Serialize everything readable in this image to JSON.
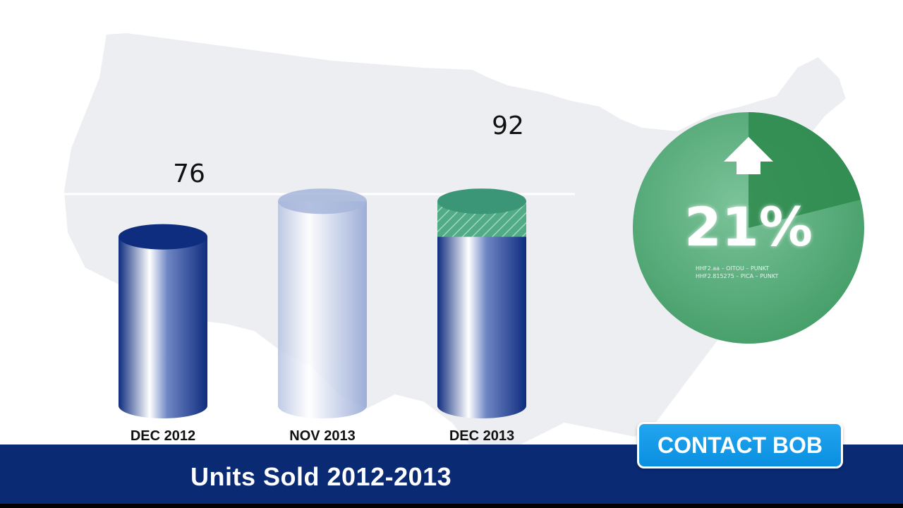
{
  "chart_data": {
    "type": "bar",
    "title": "Units Sold 2012-2013",
    "categories": [
      "DEC 2012",
      "NOV 2013",
      "DEC 2013"
    ],
    "values": [
      76,
      92,
      92
    ],
    "data_labels": [
      "76",
      "",
      "92"
    ],
    "ylim": [
      0,
      100
    ],
    "grid": false,
    "colors": {
      "bar": "#0f2d7f",
      "ghost_bar": "#b5c2e0",
      "increase": "#3fa37a"
    }
  },
  "badge": {
    "percent": "21%",
    "direction_icon": "up-arrow-icon",
    "fine_print": [
      "HHF2.aa – OITOU – PUNKT",
      "HHF2.815275 – PICA – PUNKT"
    ],
    "color": "#4aa56c"
  },
  "footer": {
    "title": "Units Sold 2012-2013",
    "contact_label": "CONTACT BOB",
    "bar_color": "#0a2a73",
    "button_color": "#1a9de8"
  }
}
